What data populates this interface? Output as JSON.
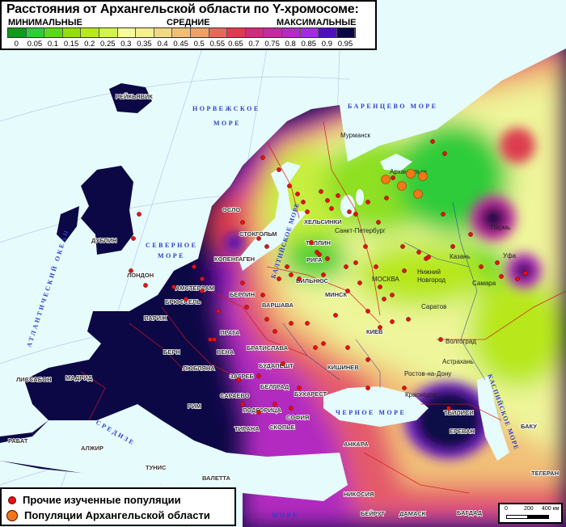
{
  "legend": {
    "title": "Расстояния от Архангельской области по Y-хромосоме:",
    "level_min": "МИНИМАЛЬНЫЕ",
    "level_mid": "СРЕДНИЕ",
    "level_max": "МАКСИМАЛЬНЫЕ",
    "ticks": [
      "0",
      "0.05",
      "0.1",
      "0.15",
      "0.2",
      "0.25",
      "0.3",
      "0.35",
      "0.4",
      "0.45",
      "0.5",
      "0.55",
      "0.65",
      "0.7",
      "0.75",
      "0.8",
      "0.85",
      "0.9",
      "0.95"
    ],
    "colors": [
      "#119a19",
      "#2ecc3a",
      "#5ad81a",
      "#94de10",
      "#b8e81e",
      "#d2f250",
      "#f6fa9a",
      "#f4f08c",
      "#f0da80",
      "#f2be74",
      "#f0a064",
      "#e46a5c",
      "#dc3c50",
      "#cc2c7c",
      "#c02ca0",
      "#b22cc0",
      "#a22ce0",
      "#5010b8",
      "#0c0846"
    ]
  },
  "points_legend": {
    "other": "Прочие изученные популяции",
    "arkhangelsk": "Популяции Архангельской области",
    "other_color": "#e81010",
    "arkhangelsk_color": "#f07818"
  },
  "scale": {
    "t0": "0",
    "t1": "200",
    "t2": "400 км"
  },
  "seas": {
    "atlantic": "АТЛАНТИЧЕСКИЙ ОКЕАН",
    "norwegian1": "НОРВЕЖСКОЕ",
    "norwegian2": "МОРЕ",
    "barents": "БАРЕНЦЕВО МОРЕ",
    "north1": "СЕВЕРНОЕ",
    "north2": "МОРЕ",
    "baltic": "БАЛТИЙСКОЕ МОРЕ",
    "black": "ЧЕРНОЕ МОРЕ",
    "caspian": "КАСПИЙСКОЕ МОРЕ",
    "med1": "СРЕДИЗЕ",
    "med2": "МОРЕ"
  },
  "cities": {
    "reykjavik": "РЕЙКЬЯВИК",
    "oslo": "ОСЛО",
    "stockholm": "СТОКГОЛЬМ",
    "copenhagen": "КОПЕНГАГЕН",
    "helsinki": "ХЕЛЬСИНКИ",
    "tallinn": "ТАЛЛИН",
    "riga": "РИГА",
    "vilnius": "ВИЛЬНЮС",
    "minsk": "МИНСК",
    "dublin": "ДУБЛИН",
    "london": "ЛОНДОН",
    "amsterdam": "АМСТЕРДАМ",
    "brussels": "БРЮССЕЛЬ",
    "paris": "ПАРИЖ",
    "berlin": "БЕРЛИН",
    "warsaw": "ВАРШАВА",
    "prague": "ПРАГА",
    "bern": "БЕРН",
    "vienna": "ВЕНА",
    "bratislava": "БРАТИСЛАВА",
    "budapest": "БУДАПЕШТ",
    "ljubljana": "ЛЮБЛЯНА",
    "zagreb": "ЗАГРЕБ",
    "belgrade": "БЕЛГРАД",
    "sarajevo": "САРАЕВО",
    "bucharest": "БУХАРЕСТ",
    "podgorica": "ПОДГОРИЦА",
    "sofia": "СОФИЯ",
    "tirana": "ТИРАНА",
    "skopje": "СКОПЬЕ",
    "rome": "РИМ",
    "madrid": "МАДРИД",
    "lisbon": "ЛИССАБОН",
    "rabat": "РАБАТ",
    "algiers": "АЛЖИР",
    "tunis": "ТУНИС",
    "valletta": "ВАЛЕТТА",
    "kyiv": "КИЕВ",
    "chisinau": "КИШИНЕВ",
    "ankara": "АНКАРА",
    "nicosia": "НИКОСИЯ",
    "beirut": "БЕЙРУТ",
    "damascus": "ДАМАСК",
    "baghdad": "БАГДАД",
    "tbilisi": "ТБИЛИСИ",
    "yerevan": "ЕРЕВАН",
    "baku": "БАКУ",
    "tehran": "ТЕГЕРАН",
    "murmansk": "Мурманск",
    "arkhangelsk": "Архангельск",
    "spb": "Санкт-Петербург",
    "moscow": "МОСКВА",
    "nnovgorod1": "Нижний",
    "nnovgorod2": "Новгород",
    "kazan": "Казань",
    "perm": "Пермь",
    "ufa": "Уфа",
    "samara": "Самара",
    "saratov": "Саратов",
    "volgograd": "Волгоград",
    "astrakhan": "Астрахань",
    "rostov": "Ростов-на-Дону",
    "krasnodar": "Краснодар"
  }
}
